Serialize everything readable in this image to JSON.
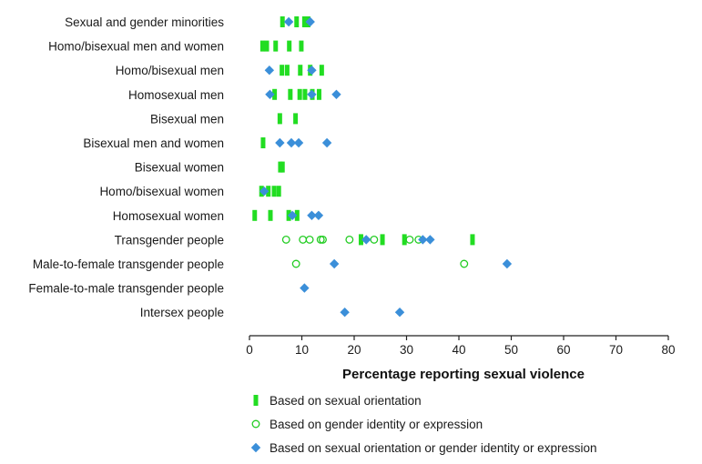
{
  "chart_data": {
    "type": "scatter",
    "xlabel": "Percentage reporting sexual violence",
    "xlim": [
      0,
      80
    ],
    "xticks": [
      0,
      10,
      20,
      30,
      40,
      50,
      60,
      70,
      80
    ],
    "categories": [
      "Sexual and gender minorities",
      "Homo/bisexual men and women",
      "Homo/bisexual men",
      "Homosexual men",
      "Bisexual men",
      "Bisexual men and women",
      "Bisexual women",
      "Homo/bisexual women",
      "Homosexual women",
      "Transgender people",
      "Male-to-female transgender people",
      "Female-to-male transgender people",
      "Intersex people"
    ],
    "series": [
      {
        "name": "Based on sexual orientation",
        "marker": "bar",
        "color": "#22dd22",
        "points": [
          {
            "category": "Sexual and gender minorities",
            "values": [
              6.3,
              9.0,
              10.5,
              11.2
            ]
          },
          {
            "category": "Homo/bisexual men and women",
            "values": [
              2.5,
              3.3,
              5.0,
              7.6,
              9.9
            ]
          },
          {
            "category": "Homo/bisexual men",
            "values": [
              6.2,
              7.2,
              9.7,
              11.6,
              13.8
            ]
          },
          {
            "category": "Homosexual men",
            "values": [
              4.8,
              7.8,
              9.6,
              10.6,
              12.0,
              13.3
            ]
          },
          {
            "category": "Bisexual men",
            "values": [
              5.8,
              8.8
            ]
          },
          {
            "category": "Bisexual men and women",
            "values": [
              2.6
            ]
          },
          {
            "category": "Bisexual women",
            "values": [
              5.9,
              6.3
            ]
          },
          {
            "category": "Homo/bisexual women",
            "values": [
              2.3,
              3.6,
              4.7,
              5.6
            ]
          },
          {
            "category": "Homosexual women",
            "values": [
              1.0,
              4.0,
              7.5,
              9.1
            ]
          },
          {
            "category": "Transgender people",
            "values": [
              21.3,
              25.4,
              29.6,
              42.6
            ]
          }
        ]
      },
      {
        "name": "Based on gender identity or expression",
        "marker": "circle",
        "color": "#22cc22",
        "points": [
          {
            "category": "Transgender people",
            "values": [
              7.0,
              10.2,
              11.5,
              13.6,
              14.0,
              19.1,
              23.8,
              30.6,
              32.3
            ]
          },
          {
            "category": "Male-to-female transgender people",
            "values": [
              8.9,
              41.0
            ]
          }
        ]
      },
      {
        "name": "Based on sexual orientation or gender identity or expression",
        "marker": "diamond",
        "color": "#3b8fd9",
        "points": [
          {
            "category": "Sexual and gender minorities",
            "values": [
              7.5,
              11.6
            ]
          },
          {
            "category": "Homo/bisexual men",
            "values": [
              3.8,
              11.9
            ]
          },
          {
            "category": "Homosexual men",
            "values": [
              3.9,
              11.9,
              16.6
            ]
          },
          {
            "category": "Bisexual men and women",
            "values": [
              5.8,
              8.0,
              9.4,
              14.8
            ]
          },
          {
            "category": "Homo/bisexual women",
            "values": [
              2.8
            ]
          },
          {
            "category": "Homosexual women",
            "values": [
              8.2,
              11.9,
              13.2
            ]
          },
          {
            "category": "Transgender people",
            "values": [
              22.3,
              33.1,
              34.5
            ]
          },
          {
            "category": "Male-to-female transgender people",
            "values": [
              16.2,
              49.2
            ]
          },
          {
            "category": "Female-to-male transgender people",
            "values": [
              10.5
            ]
          },
          {
            "category": "Intersex people",
            "values": [
              18.2,
              28.7
            ]
          }
        ]
      }
    ]
  }
}
